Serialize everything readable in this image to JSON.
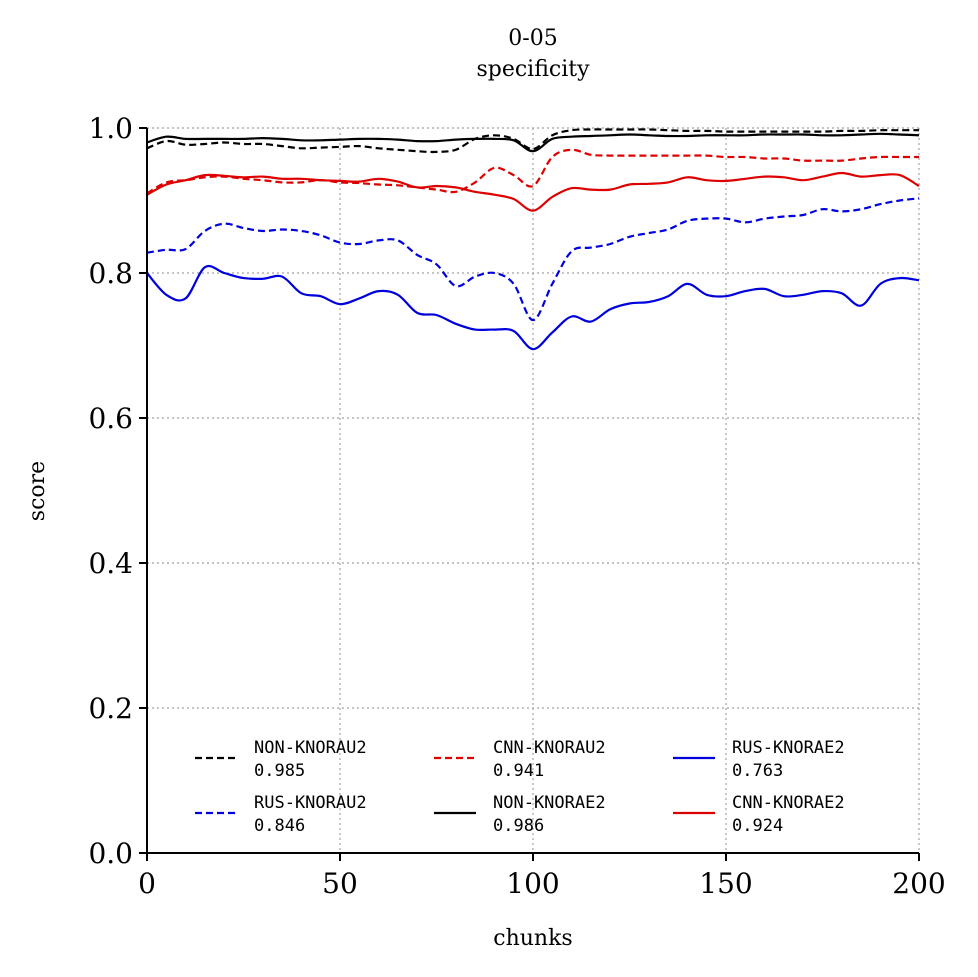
{
  "chart_data": {
    "type": "line",
    "title": "0-05",
    "subtitle": "specificity",
    "xlabel": "chunks",
    "ylabel": "score",
    "xlim": [
      0,
      200
    ],
    "ylim": [
      0.0,
      1.0
    ],
    "x_ticks": [
      "0",
      "50",
      "100",
      "150",
      "200"
    ],
    "y_ticks": [
      "0.0",
      "0.2",
      "0.4",
      "0.6",
      "0.8",
      "1.0"
    ],
    "grid": true,
    "legend_position": "lower-center",
    "x": [
      0,
      5,
      10,
      15,
      20,
      25,
      30,
      35,
      40,
      45,
      50,
      55,
      60,
      65,
      70,
      75,
      80,
      85,
      90,
      95,
      100,
      105,
      110,
      115,
      120,
      125,
      130,
      135,
      140,
      145,
      150,
      155,
      160,
      165,
      170,
      175,
      180,
      185,
      190,
      195,
      200
    ],
    "series": [
      {
        "name": "NON-KNORAU2",
        "value_label": "0.985",
        "color": "#000000",
        "dash": "dashed",
        "values": [
          0.972,
          0.982,
          0.977,
          0.978,
          0.98,
          0.978,
          0.978,
          0.975,
          0.972,
          0.973,
          0.974,
          0.975,
          0.972,
          0.97,
          0.968,
          0.967,
          0.97,
          0.985,
          0.99,
          0.985,
          0.971,
          0.99,
          0.997,
          0.998,
          0.998,
          0.998,
          0.998,
          0.997,
          0.996,
          0.996,
          0.995,
          0.995,
          0.995,
          0.995,
          0.995,
          0.995,
          0.996,
          0.996,
          0.997,
          0.997,
          0.997
        ]
      },
      {
        "name": "RUS-KNORAU2",
        "value_label": "0.846",
        "color": "#0000dd",
        "dash": "dashed",
        "values": [
          0.828,
          0.832,
          0.833,
          0.858,
          0.868,
          0.862,
          0.858,
          0.86,
          0.858,
          0.852,
          0.842,
          0.84,
          0.845,
          0.845,
          0.825,
          0.812,
          0.782,
          0.795,
          0.8,
          0.785,
          0.735,
          0.785,
          0.83,
          0.835,
          0.84,
          0.85,
          0.855,
          0.86,
          0.872,
          0.875,
          0.875,
          0.87,
          0.875,
          0.878,
          0.88,
          0.888,
          0.885,
          0.888,
          0.895,
          0.9,
          0.903
        ]
      },
      {
        "name": "CNN-KNORAU2",
        "value_label": "0.941",
        "color": "#dd0000",
        "dash": "dashed",
        "values": [
          0.91,
          0.925,
          0.928,
          0.932,
          0.933,
          0.93,
          0.928,
          0.925,
          0.925,
          0.928,
          0.925,
          0.924,
          0.922,
          0.921,
          0.918,
          0.915,
          0.912,
          0.925,
          0.945,
          0.935,
          0.92,
          0.96,
          0.97,
          0.963,
          0.962,
          0.962,
          0.962,
          0.962,
          0.962,
          0.962,
          0.96,
          0.96,
          0.958,
          0.958,
          0.955,
          0.955,
          0.955,
          0.958,
          0.96,
          0.96,
          0.96
        ]
      },
      {
        "name": "NON-KNORAE2",
        "value_label": "0.986",
        "color": "#000000",
        "dash": "solid",
        "values": [
          0.98,
          0.988,
          0.985,
          0.985,
          0.985,
          0.985,
          0.986,
          0.985,
          0.983,
          0.983,
          0.984,
          0.985,
          0.985,
          0.984,
          0.982,
          0.982,
          0.984,
          0.985,
          0.985,
          0.983,
          0.968,
          0.985,
          0.988,
          0.989,
          0.99,
          0.991,
          0.99,
          0.989,
          0.989,
          0.99,
          0.99,
          0.99,
          0.991,
          0.991,
          0.991,
          0.99,
          0.99,
          0.991,
          0.992,
          0.991,
          0.99
        ]
      },
      {
        "name": "RUS-KNORAE2",
        "value_label": "0.763",
        "color": "#0000dd",
        "dash": "solid",
        "values": [
          0.8,
          0.77,
          0.765,
          0.808,
          0.8,
          0.793,
          0.792,
          0.795,
          0.772,
          0.768,
          0.757,
          0.765,
          0.775,
          0.77,
          0.745,
          0.742,
          0.73,
          0.722,
          0.722,
          0.72,
          0.695,
          0.718,
          0.74,
          0.733,
          0.75,
          0.758,
          0.76,
          0.768,
          0.785,
          0.77,
          0.768,
          0.775,
          0.778,
          0.768,
          0.77,
          0.775,
          0.772,
          0.755,
          0.785,
          0.793,
          0.79
        ]
      },
      {
        "name": "CNN-KNORAE2",
        "value_label": "0.924",
        "color": "#dd0000",
        "dash": "solid",
        "values": [
          0.908,
          0.922,
          0.928,
          0.935,
          0.934,
          0.932,
          0.933,
          0.93,
          0.93,
          0.928,
          0.927,
          0.926,
          0.93,
          0.926,
          0.918,
          0.92,
          0.918,
          0.912,
          0.908,
          0.902,
          0.886,
          0.905,
          0.917,
          0.915,
          0.915,
          0.922,
          0.923,
          0.925,
          0.932,
          0.928,
          0.927,
          0.93,
          0.933,
          0.932,
          0.928,
          0.933,
          0.938,
          0.933,
          0.935,
          0.935,
          0.92
        ]
      }
    ]
  }
}
